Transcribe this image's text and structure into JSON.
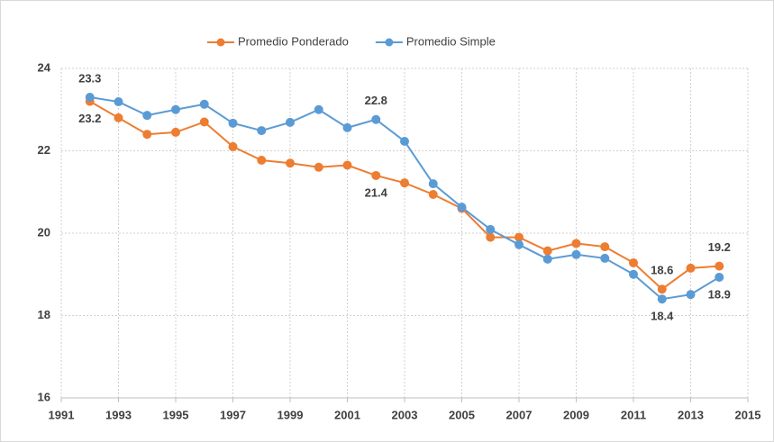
{
  "chart_data": {
    "type": "line",
    "x": [
      1992,
      1993,
      1994,
      1995,
      1996,
      1997,
      1998,
      1999,
      2000,
      2001,
      2002,
      2003,
      2004,
      2005,
      2006,
      2007,
      2008,
      2009,
      2010,
      2011,
      2012,
      2013,
      2014
    ],
    "series": [
      {
        "name": "Promedio Ponderado",
        "color": "#ed7d31",
        "values": [
          23.2,
          22.8,
          22.4,
          22.45,
          22.7,
          22.1,
          21.77,
          21.7,
          21.6,
          21.65,
          21.4,
          21.22,
          20.94,
          20.6,
          19.9,
          19.9,
          19.57,
          19.75,
          19.67,
          19.28,
          18.64,
          19.15,
          19.2
        ],
        "value_labels": [
          "23.2",
          null,
          null,
          null,
          null,
          null,
          null,
          null,
          null,
          null,
          "21.4",
          null,
          null,
          null,
          null,
          null,
          null,
          null,
          null,
          null,
          "18.6",
          null,
          "19.2"
        ]
      },
      {
        "name": "Promedio Simple",
        "color": "#5b9bd5",
        "values": [
          23.3,
          23.19,
          22.86,
          23.0,
          23.13,
          22.67,
          22.49,
          22.69,
          23.0,
          22.56,
          22.76,
          22.23,
          21.2,
          20.63,
          20.09,
          19.72,
          19.37,
          19.48,
          19.39,
          19.0,
          18.4,
          18.51,
          18.93
        ],
        "value_labels": [
          "23.3",
          null,
          null,
          null,
          null,
          null,
          null,
          null,
          null,
          null,
          "22.8",
          null,
          null,
          null,
          null,
          null,
          null,
          null,
          null,
          null,
          "18.4",
          null,
          "18.9"
        ]
      }
    ],
    "xlim": [
      1991,
      2015
    ],
    "xticks": [
      1991,
      1993,
      1995,
      1997,
      1999,
      2001,
      2003,
      2005,
      2007,
      2009,
      2011,
      2013,
      2015
    ],
    "ylim": [
      16,
      24
    ],
    "yticks": [
      16,
      18,
      20,
      22,
      24
    ],
    "grid": true,
    "legend": "top"
  }
}
